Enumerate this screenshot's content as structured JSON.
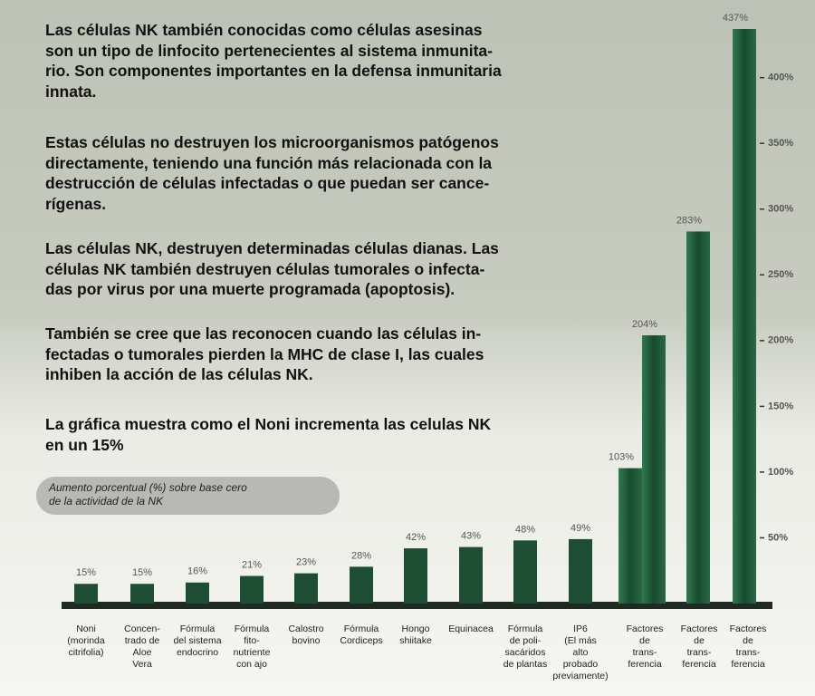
{
  "paragraphs": [
    "Las células NK  también conocidas como células asesinas\nson un tipo de linfocito pertenecientes al sistema inmunita-\nrio. Son componentes importantes en la defensa inmunitaria\ninnata.",
    "Estas células no destruyen los microorganismos patógenos\ndirectamente, teniendo una función más relacionada con la\ndestrucción de células infectadas o que puedan ser cance-\nrígenas.",
    "Las células NK, destruyen determinadas células dianas. Las\ncélulas NK también destruyen células tumorales o infecta-\ndas por virus por una muerte programada (apoptosis).",
    "También se cree que las reconocen cuando las células in-\nfectadas o tumorales pierden la MHC de clase I, las cuales\ninhiben la acción de las células NK.",
    "La gráfica muestra como el Noni incrementa las celulas NK\nen un 15%"
  ],
  "chart_data": {
    "type": "bar",
    "title": "Aumento porcentual (%) sobre base cero\nde la actividad de la NK",
    "categories": [
      "Noni\n(morinda\ncitrifolia)",
      "Concen-\ntrado de\nAloe\nVera",
      "Fórmula\ndel sistema\nendocrino",
      "Fórmula\nfito-\nnutriente\ncon ajo",
      "Calostro\nbovino",
      "Fórmula\nCordiceps",
      "Hongo\nshiitake",
      "Equinacea",
      "Fórmula\nde poli-\nsacáridos\nde plantas",
      "IP6\n(El más\nalto\nprobado\npreviamente)",
      null,
      "Factores\nde\ntrans-\nferencia",
      "Factores\nde\ntrans-\nferencia",
      "Factores\nde\ntrans-\nferencia"
    ],
    "values": [
      15,
      15,
      16,
      21,
      23,
      28,
      42,
      43,
      48,
      49,
      103,
      204,
      283,
      437
    ],
    "value_labels": [
      "15%",
      "15%",
      "16%",
      "21%",
      "23%",
      "28%",
      "42%",
      "43%",
      "48%",
      "49%",
      "103%",
      "204%",
      "283%",
      "437%"
    ],
    "color": "#1d4d33",
    "ylim": [
      0,
      450
    ],
    "yticks": [
      {
        "value": 50,
        "label": "50%"
      },
      {
        "value": 100,
        "label": "100%"
      },
      {
        "value": 150,
        "label": "150%"
      },
      {
        "value": 200,
        "label": "200%"
      },
      {
        "value": 250,
        "label": "250%"
      },
      {
        "value": 300,
        "label": "300%"
      },
      {
        "value": 350,
        "label": "350%"
      },
      {
        "value": 400,
        "label": "400%"
      }
    ]
  }
}
